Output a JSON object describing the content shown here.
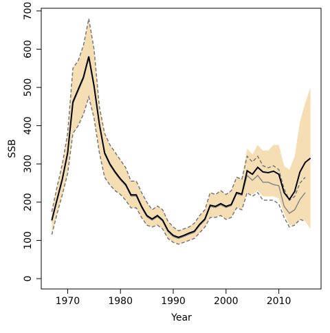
{
  "chart_data": {
    "type": "line",
    "xlabel": "Year",
    "ylabel": "SSB",
    "x": [
      1967,
      1968,
      1969,
      1970,
      1971,
      1972,
      1973,
      1974,
      1975,
      1976,
      1977,
      1978,
      1979,
      1980,
      1981,
      1982,
      1983,
      1984,
      1985,
      1986,
      1987,
      1988,
      1989,
      1990,
      1991,
      1992,
      1993,
      1994,
      1995,
      1996,
      1997,
      1998,
      1999,
      2000,
      2001,
      2002,
      2003,
      2004,
      2005,
      2006,
      2007,
      2008,
      2009,
      2010,
      2011,
      2012,
      2013,
      2014,
      2015,
      2016
    ],
    "band": {
      "color": "#f5deb3",
      "upper": [
        175,
        240,
        300,
        380,
        550,
        570,
        610,
        680,
        600,
        450,
        380,
        350,
        330,
        310,
        290,
        255,
        255,
        225,
        200,
        180,
        190,
        180,
        150,
        135,
        125,
        130,
        135,
        145,
        165,
        180,
        225,
        220,
        230,
        220,
        230,
        265,
        260,
        340,
        325,
        350,
        335,
        335,
        350,
        350,
        295,
        285,
        320,
        410,
        460,
        500
      ],
      "lower": [
        115,
        170,
        220,
        275,
        380,
        400,
        430,
        475,
        420,
        330,
        265,
        245,
        230,
        220,
        205,
        185,
        185,
        160,
        140,
        135,
        140,
        130,
        105,
        95,
        90,
        95,
        100,
        105,
        120,
        135,
        160,
        160,
        165,
        155,
        160,
        185,
        180,
        225,
        220,
        230,
        215,
        215,
        215,
        210,
        170,
        140,
        140,
        155,
        150,
        130
      ]
    },
    "lines": [
      {
        "color": "#777777",
        "dash": true,
        "values": [
          175,
          240,
          300,
          380,
          550,
          570,
          610,
          680,
          600,
          450,
          380,
          350,
          330,
          310,
          290,
          255,
          255,
          225,
          200,
          180,
          190,
          180,
          150,
          135,
          125,
          130,
          135,
          145,
          165,
          180,
          225,
          220,
          230,
          220,
          230,
          265,
          260,
          320,
          305,
          320,
          295,
          290,
          295,
          285,
          235,
          205,
          215,
          250,
          265,
          null
        ]
      },
      {
        "color": "#777777",
        "dash": true,
        "values": [
          115,
          170,
          220,
          275,
          380,
          400,
          430,
          475,
          420,
          330,
          265,
          245,
          230,
          220,
          205,
          185,
          185,
          160,
          140,
          135,
          140,
          130,
          105,
          95,
          90,
          95,
          100,
          105,
          120,
          135,
          160,
          160,
          165,
          155,
          160,
          185,
          180,
          225,
          215,
          225,
          205,
          205,
          205,
          195,
          160,
          135,
          140,
          155,
          150,
          null
        ]
      },
      {
        "color": "#888888",
        "dash": false,
        "values": [
          150,
          205,
          258,
          326,
          458,
          491,
          523,
          577,
          500,
          402,
          326,
          297,
          276,
          258,
          243,
          216,
          216,
          186,
          162,
          153,
          162,
          150,
          123,
          110,
          105,
          110,
          116,
          121,
          139,
          153,
          189,
          186,
          193,
          186,
          191,
          222,
          218,
          270,
          257,
          270,
          252,
          252,
          246,
          243,
          189,
          171,
          180,
          207,
          225,
          null
        ]
      },
      {
        "color": "#000000",
        "dash": false,
        "values": [
          153,
          207,
          261,
          329,
          462,
          495,
          527,
          581,
          504,
          405,
          329,
          300,
          279,
          261,
          246,
          219,
          219,
          189,
          165,
          156,
          165,
          153,
          126,
          113,
          108,
          113,
          119,
          124,
          142,
          156,
          192,
          189,
          196,
          189,
          194,
          225,
          221,
          282,
          273,
          291,
          279,
          277,
          281,
          273,
          225,
          207,
          228,
          279,
          304,
          315
        ]
      }
    ],
    "xlim": [
      1965,
      2018
    ],
    "ylim": [
      -27,
      707
    ],
    "xticks": [
      1970,
      1980,
      1990,
      2000,
      2010
    ],
    "yticks": [
      0,
      100,
      200,
      300,
      400,
      500,
      600,
      700
    ]
  }
}
